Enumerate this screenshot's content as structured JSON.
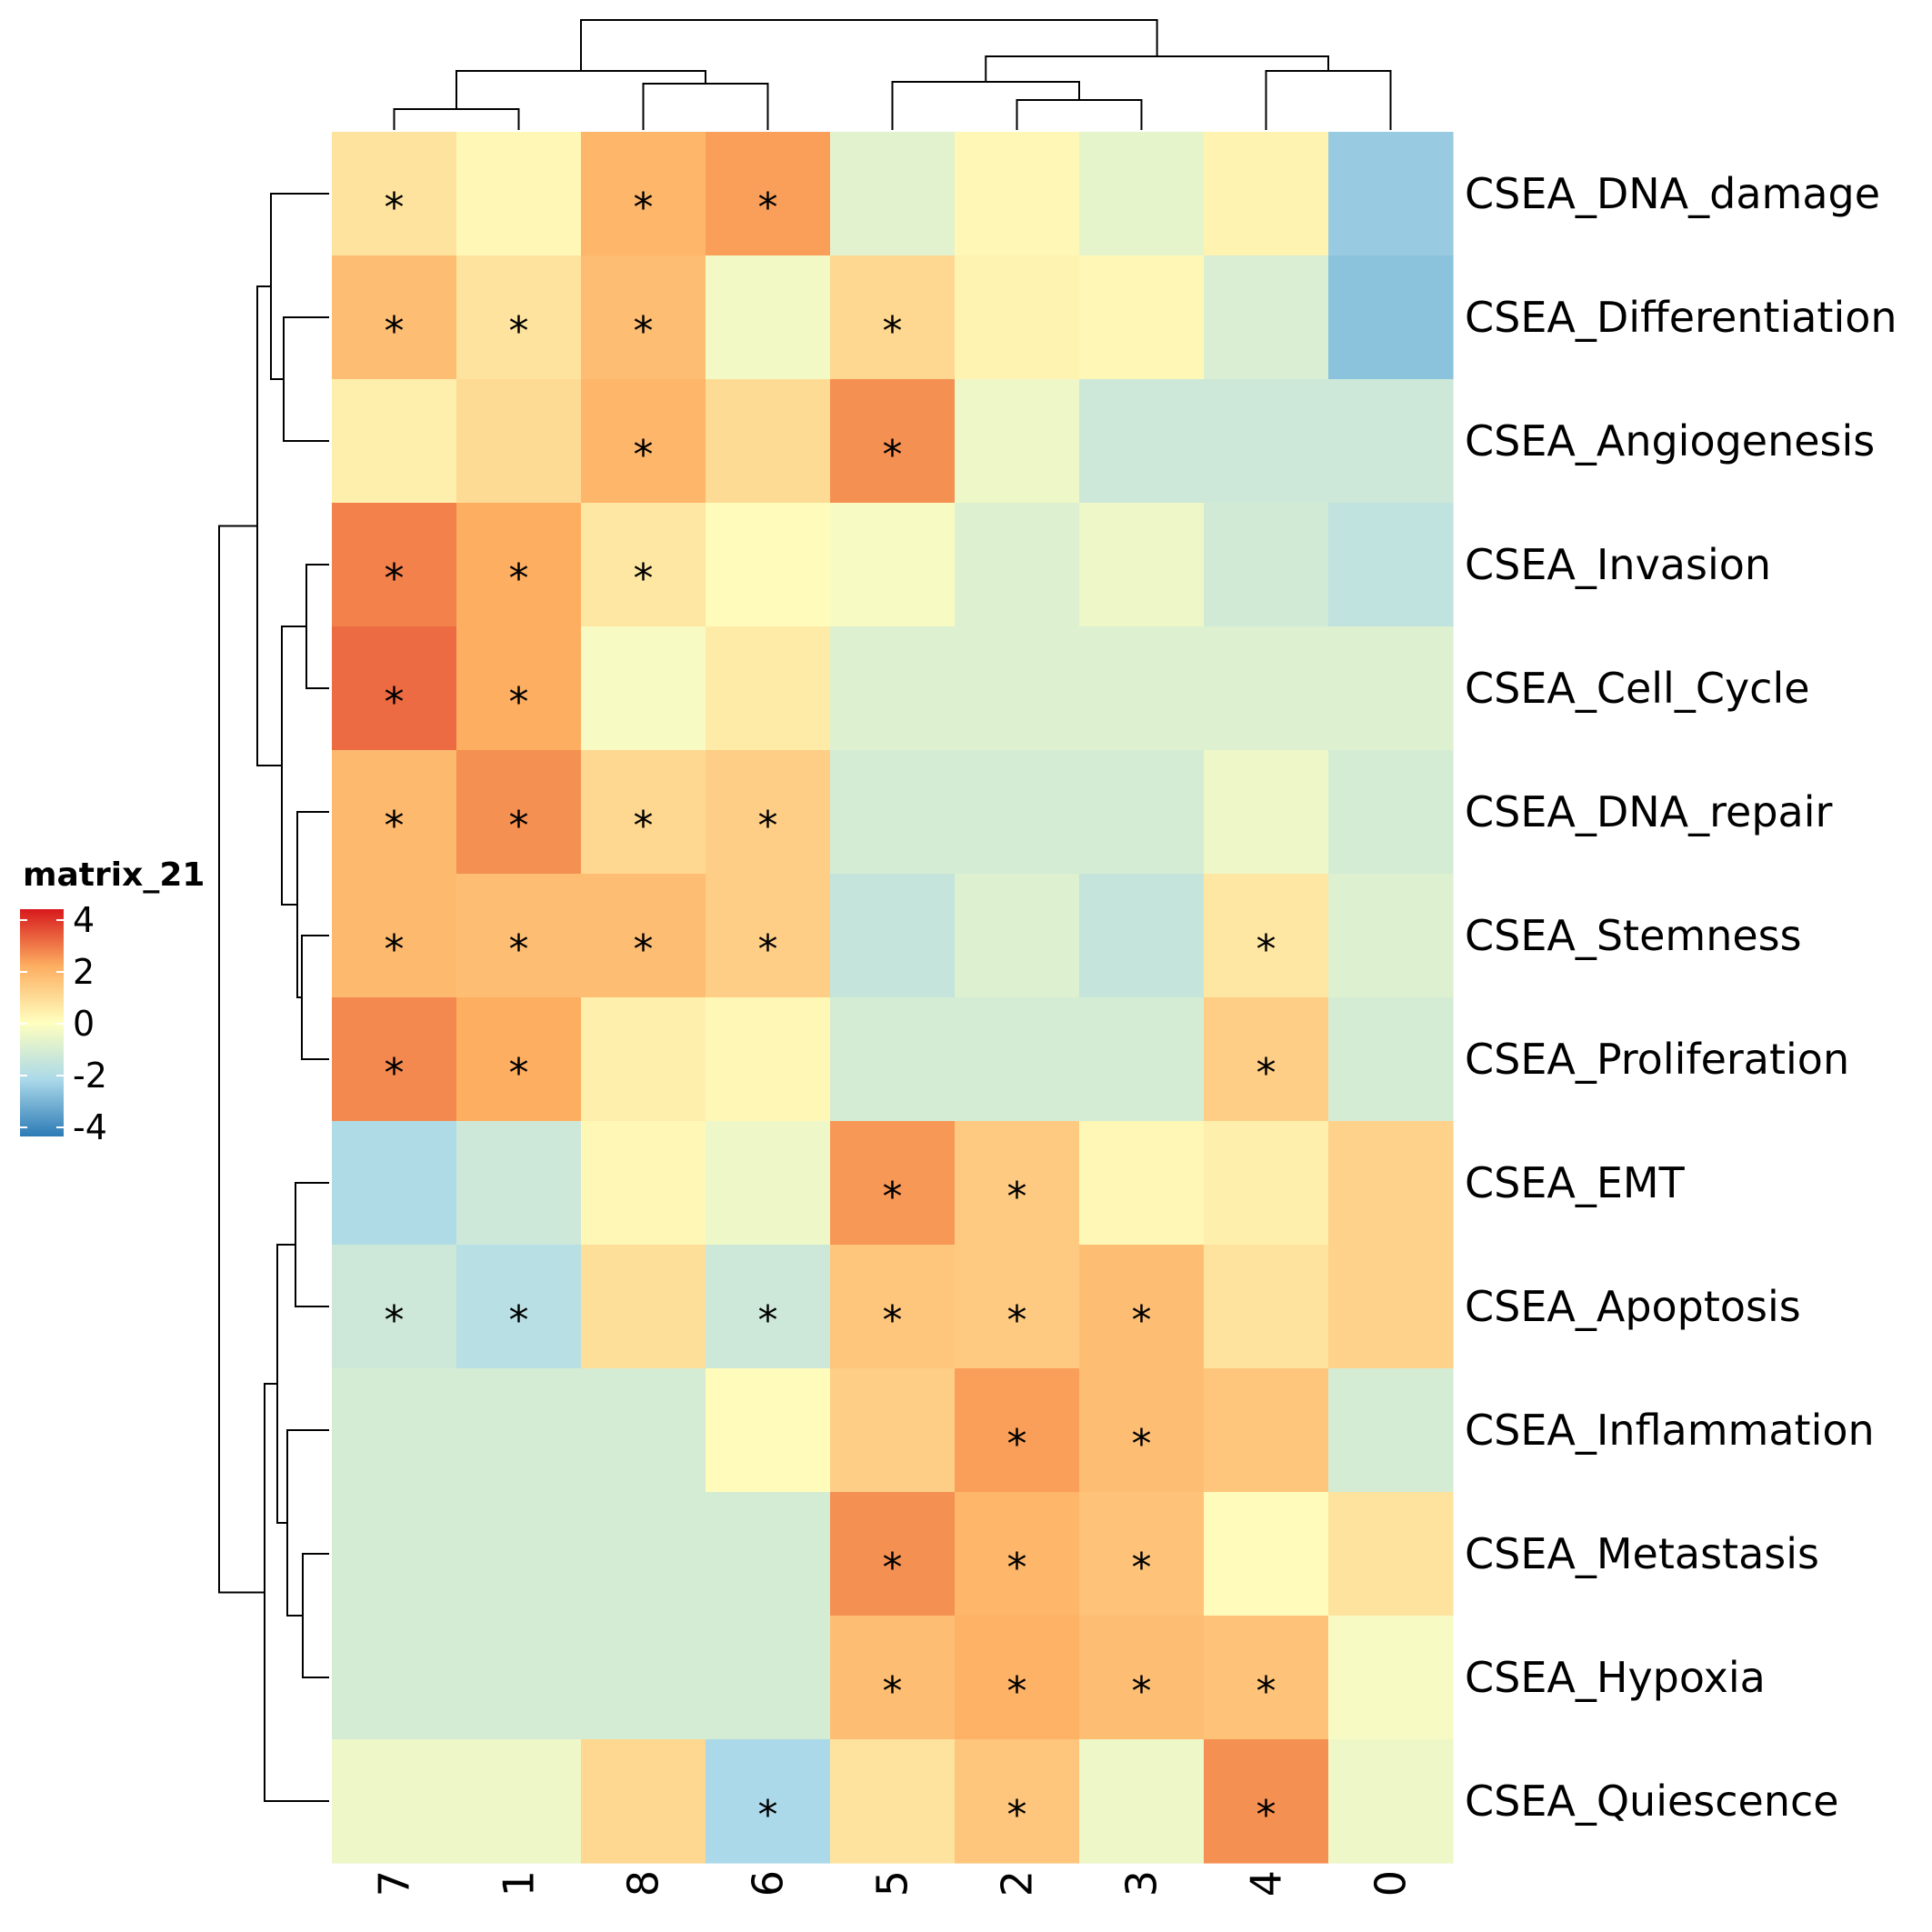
{
  "chart_data": {
    "type": "heatmap",
    "title": "",
    "columns": [
      "7",
      "1",
      "8",
      "6",
      "5",
      "2",
      "3",
      "4",
      "0"
    ],
    "rows": [
      "CSEA_DNA_damage",
      "CSEA_Differentiation",
      "CSEA_Angiogenesis",
      "CSEA_Invasion",
      "CSEA_Cell_Cycle",
      "CSEA_DNA_repair",
      "CSEA_Stemness",
      "CSEA_Proliferation",
      "CSEA_EMT",
      "CSEA_Apoptosis",
      "CSEA_Inflammation",
      "CSEA_Metastasis",
      "CSEA_Hypoxia",
      "CSEA_Quiescence"
    ],
    "values": [
      [
        0.7,
        0.2,
        1.8,
        2.2,
        -0.7,
        0.2,
        -0.6,
        0.3,
        -2.3
      ],
      [
        1.6,
        0.7,
        1.6,
        -0.3,
        1.0,
        0.3,
        0.2,
        -0.9,
        -2.5
      ],
      [
        0.4,
        0.9,
        1.8,
        0.9,
        2.4,
        -0.4,
        -1.2,
        -1.2,
        -1.2
      ],
      [
        2.6,
        2.0,
        0.6,
        0.1,
        -0.2,
        -0.8,
        -0.4,
        -1.1,
        -1.5
      ],
      [
        2.9,
        2.0,
        -0.2,
        0.5,
        -0.8,
        -0.8,
        -0.8,
        -0.8,
        -0.8
      ],
      [
        1.7,
        2.4,
        1.0,
        1.2,
        -1.0,
        -1.0,
        -1.0,
        -0.4,
        -1.0
      ],
      [
        1.7,
        1.6,
        1.6,
        1.2,
        -1.4,
        -0.8,
        -1.4,
        0.6,
        -0.8
      ],
      [
        2.5,
        2.0,
        0.4,
        0.2,
        -1.0,
        -1.0,
        -1.0,
        1.2,
        -1.0
      ],
      [
        -1.9,
        -1.2,
        0.2,
        -0.4,
        2.3,
        1.3,
        0.2,
        0.4,
        1.1
      ],
      [
        -1.2,
        -1.7,
        0.8,
        -1.2,
        1.4,
        1.3,
        1.6,
        0.7,
        1.1
      ],
      [
        -1.0,
        -1.0,
        -1.0,
        0.1,
        1.2,
        2.2,
        1.6,
        1.4,
        -1.0
      ],
      [
        -1.0,
        -1.0,
        -1.0,
        -1.0,
        2.4,
        1.8,
        1.5,
        0.1,
        0.7
      ],
      [
        -1.0,
        -1.0,
        -1.0,
        -1.0,
        1.6,
        1.9,
        1.6,
        1.5,
        -0.2
      ],
      [
        -0.4,
        -0.4,
        1.0,
        -2.0,
        0.7,
        1.4,
        -0.4,
        2.4,
        -0.4
      ]
    ],
    "significant": [
      [
        true,
        false,
        true,
        true,
        false,
        false,
        false,
        false,
        false
      ],
      [
        true,
        true,
        true,
        false,
        true,
        false,
        false,
        false,
        false
      ],
      [
        false,
        false,
        true,
        false,
        true,
        false,
        false,
        false,
        false
      ],
      [
        true,
        true,
        true,
        false,
        false,
        false,
        false,
        false,
        false
      ],
      [
        true,
        true,
        false,
        false,
        false,
        false,
        false,
        false,
        false
      ],
      [
        true,
        true,
        true,
        true,
        false,
        false,
        false,
        false,
        false
      ],
      [
        true,
        true,
        true,
        true,
        false,
        false,
        false,
        true,
        false
      ],
      [
        true,
        true,
        false,
        false,
        false,
        false,
        false,
        true,
        false
      ],
      [
        false,
        false,
        false,
        false,
        true,
        true,
        false,
        false,
        false
      ],
      [
        true,
        true,
        false,
        true,
        true,
        true,
        true,
        false,
        false
      ],
      [
        false,
        false,
        false,
        false,
        false,
        true,
        true,
        false,
        false
      ],
      [
        false,
        false,
        false,
        false,
        true,
        true,
        true,
        false,
        false
      ],
      [
        false,
        false,
        false,
        false,
        true,
        true,
        true,
        true,
        false
      ],
      [
        false,
        false,
        false,
        true,
        false,
        true,
        false,
        true,
        false
      ]
    ],
    "significance_marker": "*",
    "legend": {
      "title": "matrix_21",
      "ticks": [
        "4",
        "2",
        "0",
        "-2",
        "-4"
      ],
      "range": [
        -4,
        4
      ],
      "colors": [
        "#2c7bb6",
        "#abd9e9",
        "#ffffbf",
        "#fdae61",
        "#d7191c"
      ],
      "placement": "left"
    },
    "row_dendrogram": true,
    "column_dendrogram": true
  }
}
